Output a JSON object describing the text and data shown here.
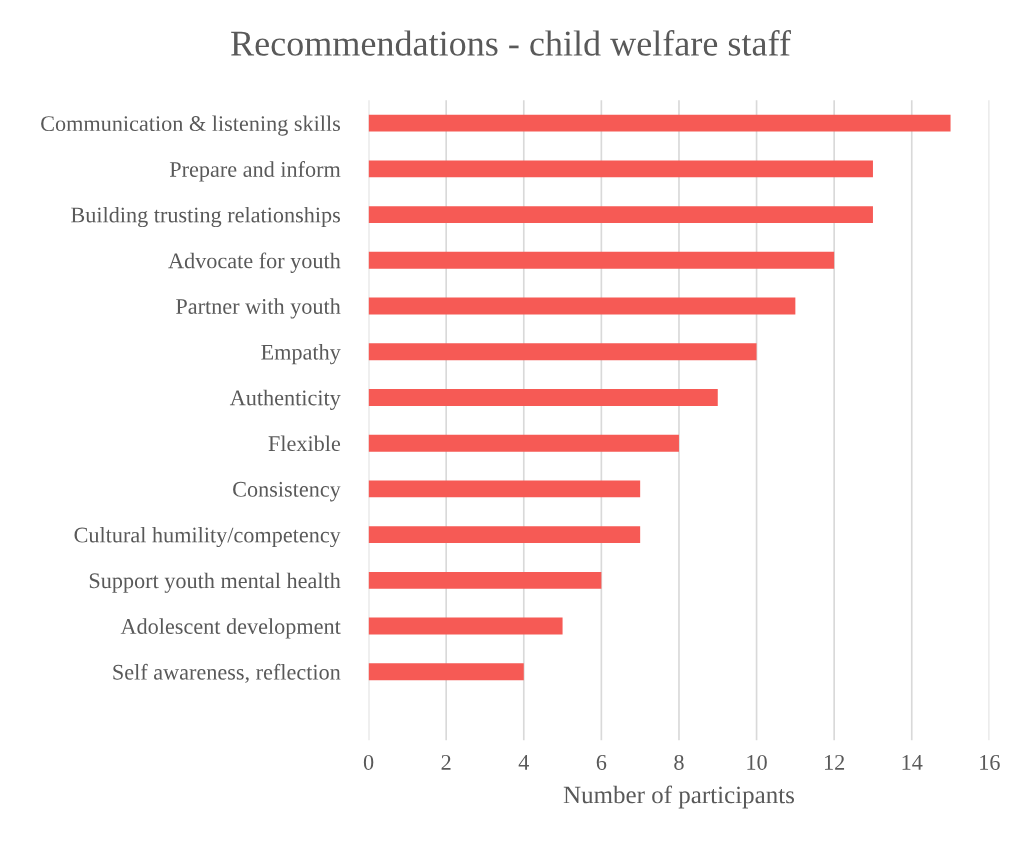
{
  "chart_data": {
    "type": "bar",
    "orientation": "horizontal",
    "title": "Recommendations - child welfare staff",
    "xlabel": "Number of participants",
    "categories": [
      "Communication & listening skills",
      "Prepare and inform",
      "Building trusting relationships",
      "Advocate for youth",
      "Partner with youth",
      "Empathy",
      "Authenticity",
      "Flexible",
      "Consistency",
      "Cultural humility/competency",
      "Support youth mental health",
      "Adolescent development",
      "Self awareness, reflection",
      null
    ],
    "values": [
      15,
      13,
      13,
      12,
      11,
      10,
      9,
      8,
      7,
      7,
      6,
      5,
      4,
      null
    ],
    "color": "#f65a55",
    "xlim": [
      0,
      16
    ],
    "xticks": [
      0,
      2,
      4,
      6,
      8,
      10,
      12,
      14,
      16
    ],
    "grid": "x",
    "legend": false
  }
}
